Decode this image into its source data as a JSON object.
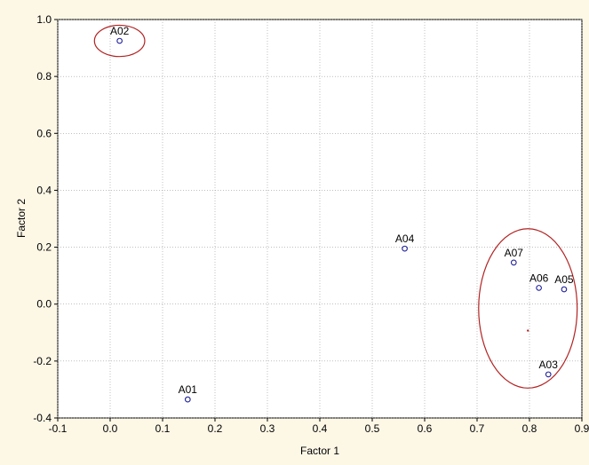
{
  "chart_data": {
    "type": "scatter",
    "title": "",
    "xlabel": "Factor 1",
    "ylabel": "Factor 2",
    "xlim": [
      -0.1,
      0.9
    ],
    "ylim": [
      -0.4,
      1.0
    ],
    "grid": true,
    "x_ticks": [
      "-0.1",
      "0.0",
      "0.1",
      "0.2",
      "0.3",
      "0.4",
      "0.5",
      "0.6",
      "0.7",
      "0.8",
      "0.9"
    ],
    "y_ticks": [
      "-0.4",
      "-0.2",
      "0.0",
      "0.2",
      "0.4",
      "0.6",
      "0.8",
      "1.0"
    ],
    "points": [
      {
        "label": "A01",
        "x": 0.148,
        "y": -0.335
      },
      {
        "label": "A02",
        "x": 0.018,
        "y": 0.925
      },
      {
        "label": "A03",
        "x": 0.836,
        "y": -0.247
      },
      {
        "label": "A04",
        "x": 0.562,
        "y": 0.195
      },
      {
        "label": "A05",
        "x": 0.866,
        "y": 0.052
      },
      {
        "label": "A06",
        "x": 0.818,
        "y": 0.057
      },
      {
        "label": "A07",
        "x": 0.77,
        "y": 0.146
      }
    ],
    "groups": [
      {
        "members": [
          "A02"
        ],
        "center_x": 0.018,
        "center_y": 0.925,
        "radius_x": 0.048,
        "radius_y": 0.055
      },
      {
        "members": [
          "A03",
          "A05",
          "A06",
          "A07"
        ],
        "center_x": 0.797,
        "center_y": -0.015,
        "radius_x": 0.094,
        "radius_y": 0.28
      }
    ],
    "colors": {
      "point": "#1f1f9a",
      "group": "#b22222",
      "grid": "#9a9a9a",
      "background": "#fdf7e6",
      "plot_area": "#ffffff"
    }
  }
}
